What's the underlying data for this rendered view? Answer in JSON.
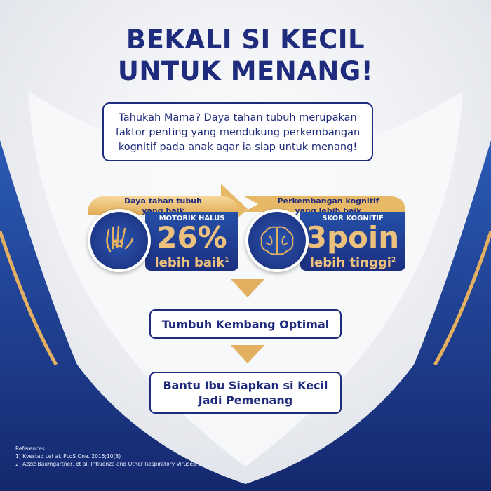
{
  "title": {
    "line1": "BEKALI SI KECIL",
    "line2": "UNTUK MENANG!"
  },
  "info": {
    "line1": "Tahukah Mama? Daya tahan tubuh merupakan",
    "line2": "faktor penting yang mendukung perkembangan",
    "line3": "kognitif pada anak agar ia siap untuk menang!"
  },
  "cards": [
    {
      "band_line1": "Daya tahan tubuh",
      "band_line2": "yang baik",
      "label": "MOTORIK HALUS",
      "value": "26%",
      "sub": "lebih baik",
      "sup": "1",
      "icon": "hand-smile-icon"
    },
    {
      "band_line1": "Perkembangan kognitif",
      "band_line2": "yang lebih baik",
      "label": "SKOR KOGNITIF",
      "value": "3poin",
      "sub": "lebih tinggi",
      "sup": "2",
      "icon": "brain-icon"
    }
  ],
  "step1": "Tumbuh Kembang Optimal",
  "step2": {
    "line1": "Bantu Ibu Siapkan si Kecil",
    "line2": "Jadi Pemenang"
  },
  "references": {
    "heading": "References:",
    "items": [
      "1) Kvestad Let al. PLoS One. 2015;10(3)",
      "2) Azziz-Baumgartner, et al. Influenza and Other Respiratory Viruses. 2021:1-12"
    ]
  },
  "colors": {
    "navy": "#1f2b7c",
    "gold": "#e3b062",
    "blue": "#1b3f9a"
  }
}
